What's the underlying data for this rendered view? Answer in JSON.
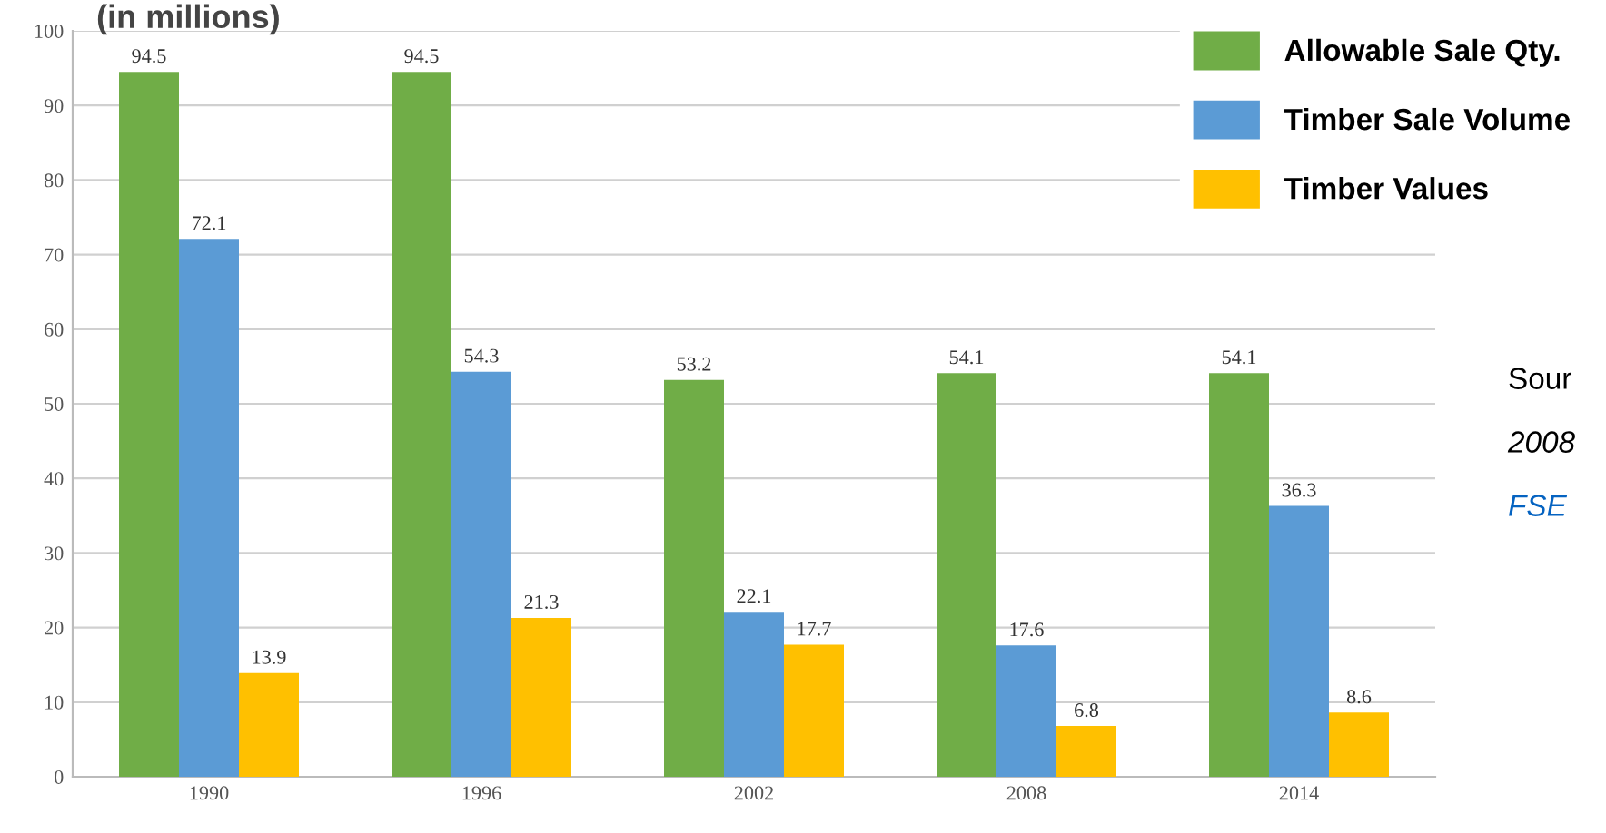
{
  "chart_data": {
    "type": "bar",
    "title": "(in millions)",
    "categories": [
      "1990",
      "1996",
      "2002",
      "2008",
      "2014"
    ],
    "series": [
      {
        "name": "Allowable Sale Qty.",
        "color": "#70ad47",
        "values": [
          94.5,
          94.5,
          53.2,
          54.1,
          54.1
        ]
      },
      {
        "name": "Timber Sale Volume",
        "color": "#5b9bd5",
        "values": [
          72.1,
          54.3,
          22.1,
          17.6,
          36.3
        ]
      },
      {
        "name": "Timber Values",
        "color": "#ffc000",
        "values": [
          13.9,
          21.3,
          17.7,
          6.8,
          8.6
        ]
      }
    ],
    "ylim": [
      0,
      100
    ],
    "yticks": [
      0,
      10,
      20,
      30,
      40,
      50,
      60,
      70,
      80,
      90,
      100
    ],
    "grid": "y",
    "legend": "top right",
    "data_labels": true,
    "annotations": [
      "Sour",
      "2008",
      "FSE"
    ]
  }
}
